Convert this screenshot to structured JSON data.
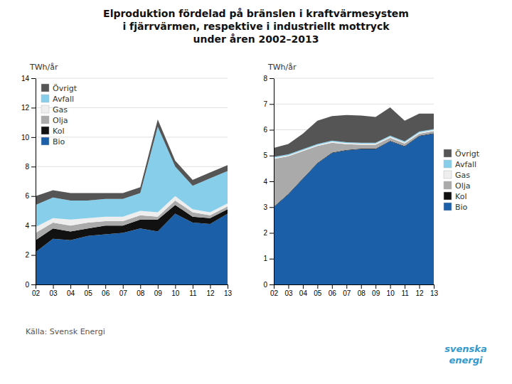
{
  "chart_data": [
    {
      "type": "area",
      "stacked": true,
      "title": "Elproduktion fördelad på bränslen i kraftvärmesystem\ni fjärrvärmen, respektive i industriellt mottryck\nunder åren 2002–2013",
      "annotations": [
        "Källa: Svensk Energi",
        "svenska\nenergi"
      ],
      "ylabel": "TWh/år",
      "categories": [
        "02",
        "03",
        "04",
        "05",
        "06",
        "07",
        "08",
        "09",
        "10",
        "11",
        "12",
        "13"
      ],
      "ylim": [
        0,
        14
      ],
      "yticks": [
        0,
        2,
        4,
        6,
        8,
        10,
        12,
        14
      ],
      "grid": true,
      "legend": "upper left",
      "series": [
        {
          "name": "Bio",
          "color": "#1a5fa8",
          "values": [
            2.2,
            3.1,
            3.0,
            3.3,
            3.4,
            3.5,
            3.8,
            3.6,
            4.8,
            4.2,
            4.1,
            4.8
          ]
        },
        {
          "name": "Kol",
          "color": "#111111",
          "values": [
            0.8,
            0.7,
            0.6,
            0.5,
            0.6,
            0.5,
            0.6,
            0.8,
            0.6,
            0.4,
            0.4,
            0.3
          ]
        },
        {
          "name": "Olja",
          "color": "#aaaaaa",
          "values": [
            0.5,
            0.4,
            0.4,
            0.4,
            0.3,
            0.3,
            0.3,
            0.2,
            0.3,
            0.3,
            0.2,
            0.2
          ]
        },
        {
          "name": "Gas",
          "color": "#eeeeee",
          "values": [
            0.4,
            0.3,
            0.4,
            0.3,
            0.3,
            0.3,
            0.3,
            0.3,
            0.3,
            0.2,
            0.2,
            0.2
          ]
        },
        {
          "name": "Avfall",
          "color": "#87ceeb",
          "values": [
            1.5,
            1.4,
            1.3,
            1.2,
            1.2,
            1.2,
            1.2,
            5.8,
            2.0,
            1.6,
            2.3,
            2.2
          ]
        },
        {
          "name": "Övrigt",
          "color": "#555555",
          "values": [
            0.6,
            0.5,
            0.5,
            0.5,
            0.4,
            0.4,
            0.4,
            0.5,
            0.4,
            0.4,
            0.4,
            0.4
          ]
        }
      ]
    },
    {
      "type": "area",
      "stacked": true,
      "ylabel": "TWh/år",
      "categories": [
        "02",
        "03",
        "04",
        "05",
        "06",
        "07",
        "08",
        "09",
        "10",
        "11",
        "12",
        "13"
      ],
      "ylim": [
        0,
        8
      ],
      "yticks": [
        0,
        1,
        2,
        3,
        4,
        5,
        6,
        7,
        8
      ],
      "grid": true,
      "legend": "right",
      "series": [
        {
          "name": "Bio",
          "color": "#1a5fa8",
          "values": [
            3.0,
            3.5,
            4.1,
            4.7,
            5.1,
            5.2,
            5.25,
            5.25,
            5.55,
            5.35,
            5.75,
            5.85
          ]
        },
        {
          "name": "Kol",
          "color": "#111111",
          "values": [
            0.02,
            0.02,
            0.02,
            0.02,
            0.02,
            0.02,
            0.02,
            0.02,
            0.02,
            0.02,
            0.02,
            0.02
          ]
        },
        {
          "name": "Olja",
          "color": "#aaaaaa",
          "values": [
            1.85,
            1.45,
            1.05,
            0.65,
            0.38,
            0.22,
            0.15,
            0.15,
            0.12,
            0.1,
            0.08,
            0.08
          ]
        },
        {
          "name": "Gas",
          "color": "#eeeeee",
          "values": [
            0.04,
            0.04,
            0.04,
            0.04,
            0.04,
            0.04,
            0.04,
            0.04,
            0.04,
            0.04,
            0.04,
            0.04
          ]
        },
        {
          "name": "Avfall",
          "color": "#87ceeb",
          "values": [
            0.04,
            0.04,
            0.04,
            0.04,
            0.04,
            0.04,
            0.04,
            0.04,
            0.04,
            0.04,
            0.04,
            0.04
          ]
        },
        {
          "name": "Övrigt",
          "color": "#555555",
          "values": [
            0.35,
            0.4,
            0.6,
            0.9,
            0.95,
            1.05,
            1.05,
            1.0,
            1.1,
            0.8,
            0.7,
            0.6
          ]
        }
      ]
    }
  ]
}
